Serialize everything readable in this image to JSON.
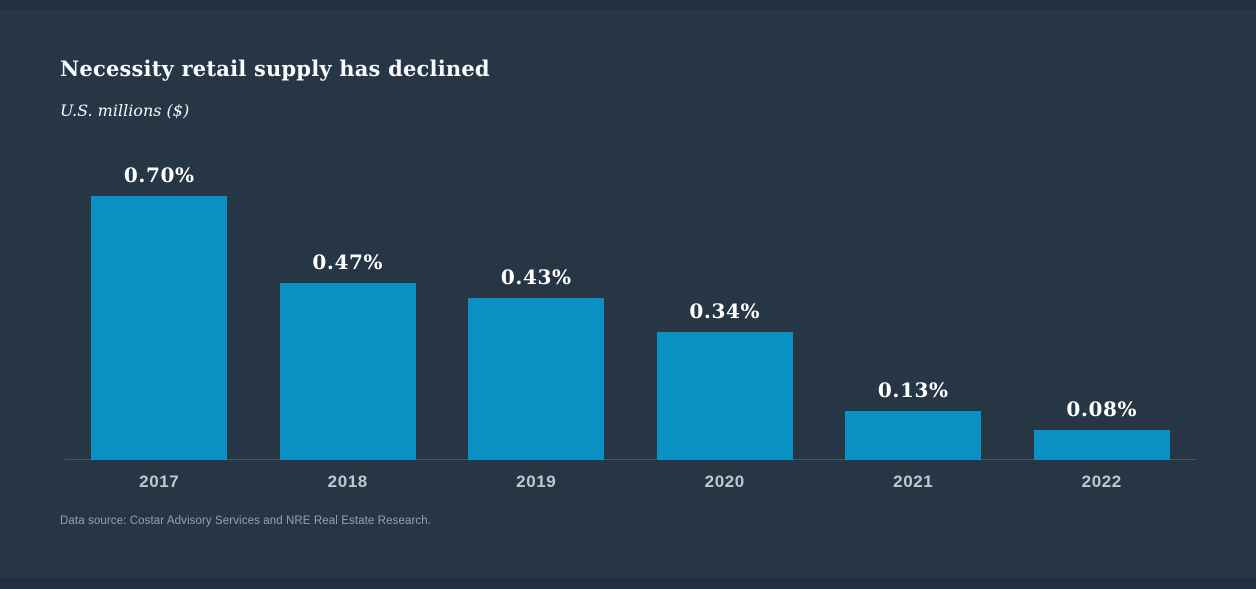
{
  "header": {
    "title": "Necessity retail supply has declined",
    "subtitle": "U.S. millions ($)"
  },
  "footer": {
    "source": "Data source: Costar Advisory Services and NRE Real Estate Research."
  },
  "colors": {
    "background": "#273645",
    "edge_band": "#20303e",
    "bar": "#0a91c3",
    "axis_line": "#4a5763",
    "title_text": "#f7f9fa",
    "value_label": "#ffffff",
    "tick_label": "#c2c7cc",
    "footnote": "#95a0ab"
  },
  "chart_data": {
    "type": "bar",
    "title": "Necessity retail supply has declined",
    "subtitle": "U.S. millions ($)",
    "categories": [
      "2017",
      "2018",
      "2019",
      "2020",
      "2021",
      "2022"
    ],
    "values": [
      0.7,
      0.47,
      0.43,
      0.34,
      0.13,
      0.08
    ],
    "value_labels": [
      "0.70%",
      "0.47%",
      "0.43%",
      "0.34%",
      "0.13%",
      "0.08%"
    ],
    "xlabel": "",
    "ylabel": "",
    "ylim": [
      0,
      0.8
    ],
    "grid": false,
    "legend": null,
    "data_label_position": "above-bar",
    "bar_color": "#0a91c3"
  }
}
